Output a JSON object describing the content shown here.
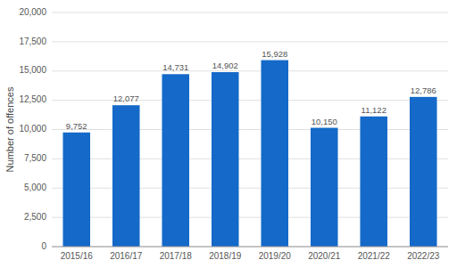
{
  "chart_data": {
    "type": "bar",
    "categories": [
      "2015/16",
      "2016/17",
      "2017/18",
      "2018/19",
      "2019/20",
      "2020/21",
      "2021/22",
      "2022/23"
    ],
    "values": [
      9752,
      12077,
      14731,
      14902,
      15928,
      10150,
      11122,
      12786
    ],
    "value_labels": [
      "9,752",
      "12,077",
      "14,731",
      "14,902",
      "15,928",
      "10,150",
      "11,122",
      "12,786"
    ],
    "color": "#1469c9",
    "ylabel": "Number of offences",
    "ylim": [
      0,
      20000
    ],
    "yticks": [
      0,
      {
        "value": 2500,
        "label": "2,500"
      },
      {
        "value": 5000,
        "label": "5,000"
      },
      {
        "value": 7500,
        "label": "7,500"
      },
      {
        "value": 10000,
        "label": "10,000"
      },
      {
        "value": 12500,
        "label": "12,500"
      },
      {
        "value": 15000,
        "label": "15,000"
      },
      {
        "value": 17500,
        "label": "17,500"
      },
      {
        "value": 20000,
        "label": "20,000"
      }
    ],
    "grid": true,
    "data_labels": true
  }
}
